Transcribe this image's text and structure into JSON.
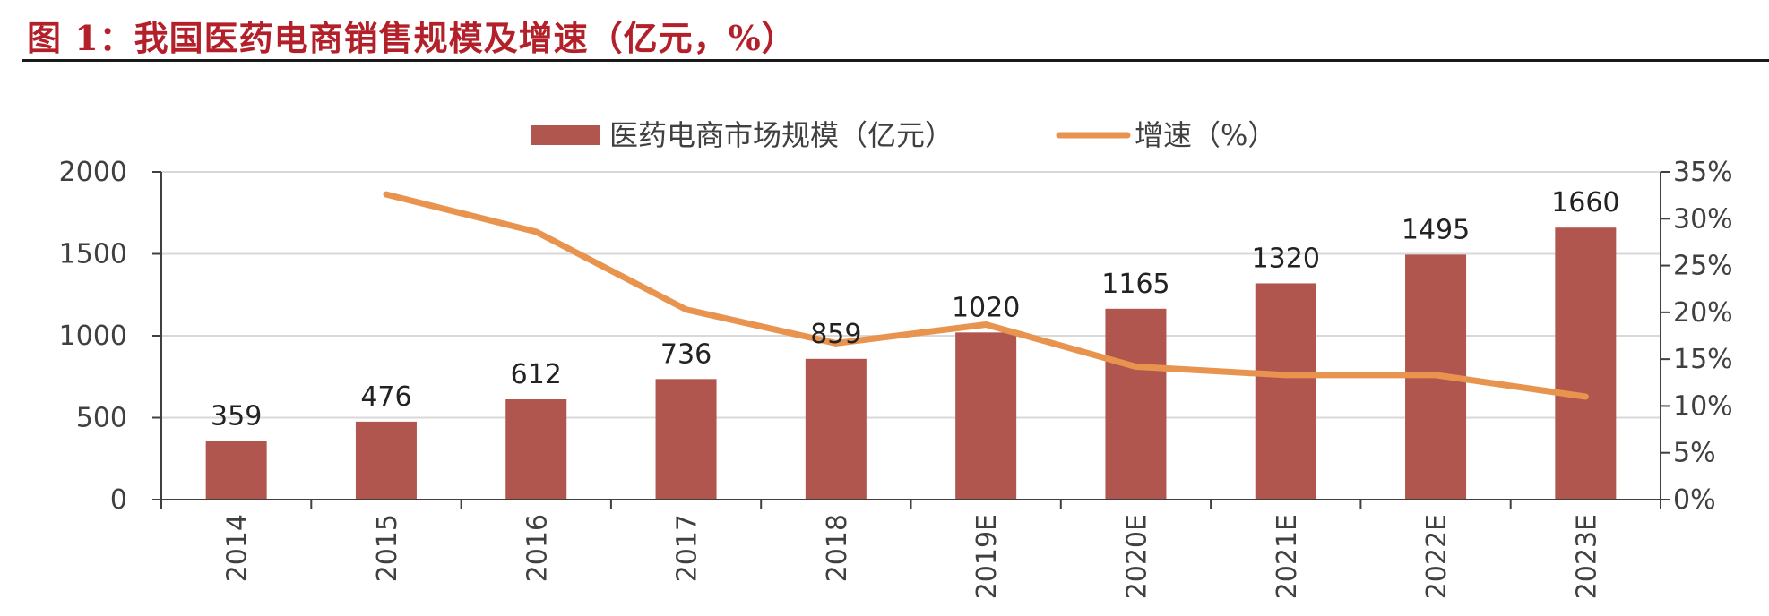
{
  "figure_title": "图 1：我国医药电商销售规模及增速（亿元，%）",
  "chart_data": {
    "type": "bar",
    "categories": [
      "2014",
      "2015",
      "2016",
      "2017",
      "2018",
      "2019E",
      "2020E",
      "2021E",
      "2022E",
      "2023E"
    ],
    "series": [
      {
        "name": "医药电商市场规模（亿元）",
        "type": "bar",
        "axis": "left",
        "color": "#b1554f",
        "values": [
          359,
          476,
          612,
          736,
          859,
          1020,
          1165,
          1320,
          1495,
          1660
        ]
      },
      {
        "name": "增速（%）",
        "type": "line",
        "axis": "right",
        "color": "#e8944f",
        "values": [
          null,
          32.6,
          28.6,
          20.3,
          16.7,
          18.7,
          14.2,
          13.3,
          13.3,
          11.0
        ]
      }
    ],
    "y_left": {
      "ylim": [
        0,
        2000
      ],
      "ticks": [
        "0",
        "500",
        "1000",
        "1500",
        "2000"
      ]
    },
    "y_right": {
      "ylim": [
        0,
        35
      ],
      "ticks": [
        "0%",
        "5%",
        "10%",
        "15%",
        "20%",
        "25%",
        "30%",
        "35%"
      ]
    },
    "grid": true,
    "legend": "top-center",
    "data_labels": [
      "359",
      "476",
      "612",
      "736",
      "859",
      "1020",
      "1165",
      "1320",
      "1495",
      "1660"
    ]
  }
}
